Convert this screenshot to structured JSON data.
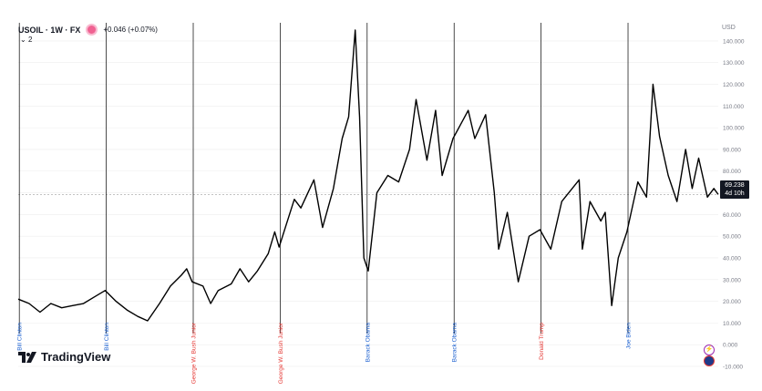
{
  "legend": {
    "symbol": "USOIL · 1W · FX",
    "change": "+0.046 (+0.07%)",
    "indicator_count": "2"
  },
  "currency_label": "USD",
  "price_tag": {
    "price": "69.238",
    "countdown": "4d 10h"
  },
  "watermark": "TradingView",
  "colors": {
    "line": "#000000",
    "democrat": "#1e62d0",
    "republican": "#e53935",
    "grid": "#eeeeee",
    "price_line": "#9e9e9e"
  },
  "chart_data": {
    "type": "line",
    "title": "",
    "xlabel": "",
    "ylabel": "",
    "ylim": [
      -10,
      145
    ],
    "x_range_years": [
      1993.0,
      2025.2
    ],
    "grid": true,
    "y_ticks": [
      "-10.000",
      "0.000",
      "10.000",
      "20.000",
      "30.000",
      "40.000",
      "50.000",
      "60.000",
      "70.000",
      "80.000",
      "90.000",
      "100.000",
      "110.000",
      "120.000",
      "130.000",
      "140.000"
    ],
    "y_tick_values": [
      -10,
      0,
      10,
      20,
      30,
      40,
      50,
      60,
      70,
      80,
      90,
      100,
      110,
      120,
      130,
      140
    ],
    "current_price": 69.238,
    "events": [
      {
        "year": 1993.05,
        "label": "Bill Clinton",
        "party": "democrat"
      },
      {
        "year": 1997.05,
        "label": "Bill Clinton",
        "party": "democrat"
      },
      {
        "year": 2001.05,
        "label": "George W. Bush Junior",
        "party": "republican"
      },
      {
        "year": 2005.05,
        "label": "George W. Bush Junior",
        "party": "republican"
      },
      {
        "year": 2009.05,
        "label": "Barack Obama",
        "party": "democrat"
      },
      {
        "year": 2013.05,
        "label": "Barack Obama",
        "party": "democrat"
      },
      {
        "year": 2017.05,
        "label": "Donald Trump",
        "party": "republican"
      },
      {
        "year": 2021.05,
        "label": "Joe Biden",
        "party": "democrat"
      }
    ],
    "series": [
      {
        "values": [
          [
            1993.0,
            21
          ],
          [
            1993.5,
            19
          ],
          [
            1994.0,
            15
          ],
          [
            1994.5,
            19
          ],
          [
            1995.0,
            17
          ],
          [
            1995.5,
            18
          ],
          [
            1996.0,
            19
          ],
          [
            1996.5,
            22
          ],
          [
            1997.0,
            25
          ],
          [
            1997.5,
            20
          ],
          [
            1998.0,
            16
          ],
          [
            1998.5,
            13
          ],
          [
            1998.95,
            11
          ],
          [
            1999.5,
            19
          ],
          [
            2000.0,
            27
          ],
          [
            2000.5,
            32
          ],
          [
            2000.75,
            35
          ],
          [
            2001.0,
            29
          ],
          [
            2001.5,
            27
          ],
          [
            2001.85,
            19
          ],
          [
            2002.2,
            25
          ],
          [
            2002.8,
            28
          ],
          [
            2003.2,
            35
          ],
          [
            2003.6,
            29
          ],
          [
            2004.0,
            34
          ],
          [
            2004.5,
            42
          ],
          [
            2004.8,
            52
          ],
          [
            2005.0,
            45
          ],
          [
            2005.7,
            67
          ],
          [
            2006.0,
            63
          ],
          [
            2006.6,
            76
          ],
          [
            2007.0,
            54
          ],
          [
            2007.5,
            72
          ],
          [
            2007.9,
            95
          ],
          [
            2008.2,
            105
          ],
          [
            2008.5,
            145
          ],
          [
            2008.7,
            105
          ],
          [
            2008.9,
            40
          ],
          [
            2009.1,
            34
          ],
          [
            2009.5,
            70
          ],
          [
            2010.0,
            78
          ],
          [
            2010.5,
            75
          ],
          [
            2011.0,
            90
          ],
          [
            2011.3,
            113
          ],
          [
            2011.8,
            85
          ],
          [
            2012.2,
            108
          ],
          [
            2012.5,
            78
          ],
          [
            2013.0,
            95
          ],
          [
            2013.7,
            108
          ],
          [
            2014.0,
            95
          ],
          [
            2014.5,
            106
          ],
          [
            2014.9,
            70
          ],
          [
            2015.1,
            44
          ],
          [
            2015.5,
            61
          ],
          [
            2016.0,
            29
          ],
          [
            2016.5,
            50
          ],
          [
            2017.0,
            53
          ],
          [
            2017.5,
            44
          ],
          [
            2018.0,
            66
          ],
          [
            2018.8,
            76
          ],
          [
            2018.95,
            44
          ],
          [
            2019.3,
            66
          ],
          [
            2019.8,
            57
          ],
          [
            2020.0,
            61
          ],
          [
            2020.3,
            18
          ],
          [
            2020.6,
            40
          ],
          [
            2021.0,
            52
          ],
          [
            2021.5,
            75
          ],
          [
            2021.9,
            68
          ],
          [
            2022.2,
            120
          ],
          [
            2022.5,
            96
          ],
          [
            2022.9,
            78
          ],
          [
            2023.3,
            66
          ],
          [
            2023.7,
            90
          ],
          [
            2024.0,
            72
          ],
          [
            2024.3,
            86
          ],
          [
            2024.7,
            68
          ],
          [
            2025.0,
            72
          ],
          [
            2025.2,
            69.238
          ]
        ]
      }
    ]
  }
}
